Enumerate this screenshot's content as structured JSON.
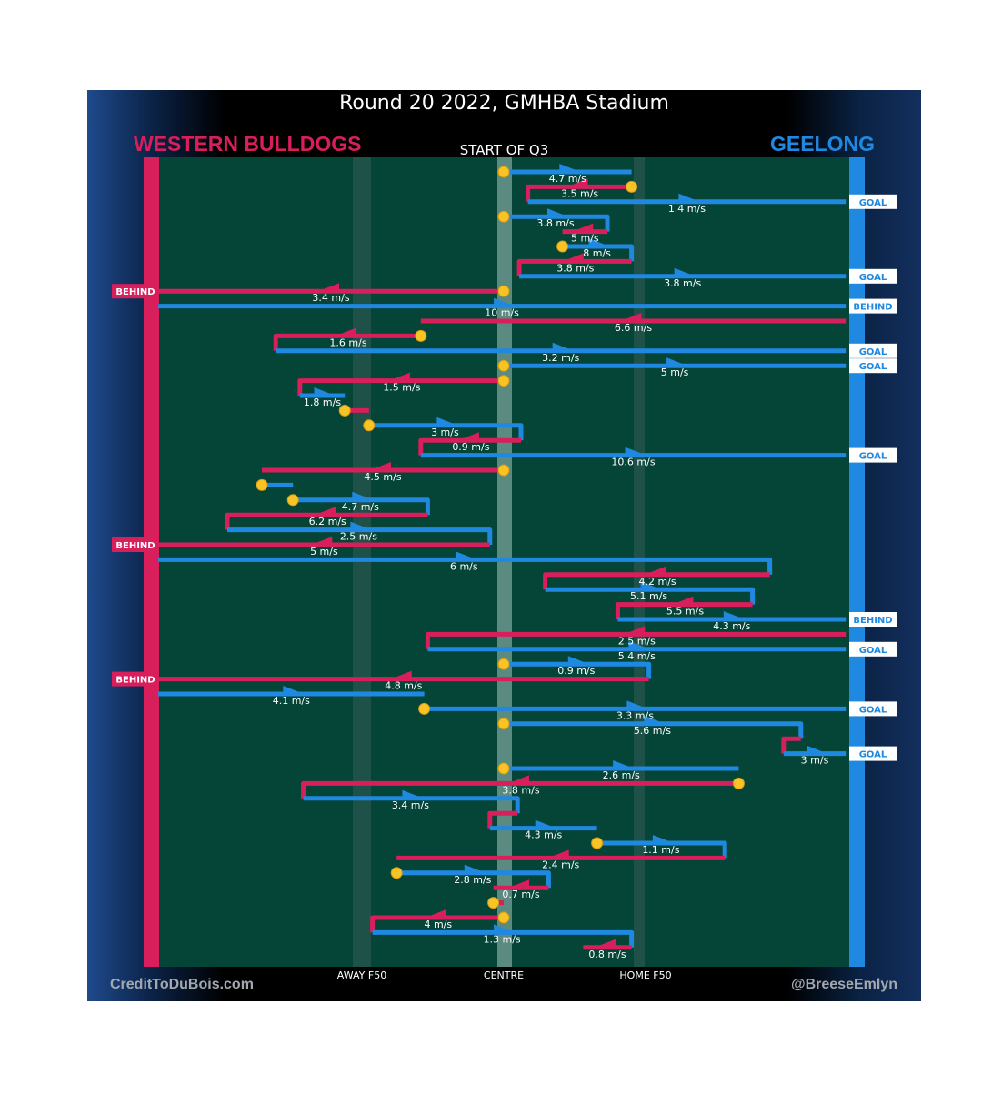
{
  "title": "Round 20 2022, GMHBA Stadium",
  "teams": {
    "left": "WESTERN BULLDOGS",
    "right": "GEELONG"
  },
  "colors": {
    "bulldogs": "#d81e5b",
    "geelong": "#1f88e0",
    "field": "#054538",
    "marker": "#f7c325"
  },
  "quarter_label": "START OF Q3",
  "axis_labels": {
    "away": "AWAY F50",
    "centre": "CENTRE",
    "home": "HOME F50"
  },
  "credits": {
    "left": "CreditToDuBois.com",
    "right": "@BreeseEmlyn"
  },
  "chart_data": {
    "type": "line",
    "x_axis": "field position",
    "x_ticks": [
      "AWAY F50",
      "CENTRE",
      "HOME F50"
    ],
    "segments": [
      {
        "team": "geelong",
        "x1": 0,
        "x2": 0.37,
        "speed": "4.7 m/s",
        "start": true
      },
      {
        "team": "bulldogs",
        "x1": 0.37,
        "x2": 0.07,
        "speed": "3.5 m/s",
        "start": true
      },
      {
        "team": "geelong",
        "x1": 0.07,
        "x2": 0.99,
        "speed": "1.4 m/s",
        "outcome": "GOAL"
      },
      {
        "team": "geelong",
        "x1": 0,
        "x2": 0.3,
        "speed": "3.8 m/s",
        "start": true
      },
      {
        "team": "bulldogs",
        "x1": 0.3,
        "x2": 0.17,
        "speed": "5 m/s"
      },
      {
        "team": "geelong",
        "x1": 0.17,
        "x2": 0.37,
        "speed": "8 m/s",
        "start": true
      },
      {
        "team": "bulldogs",
        "x1": 0.37,
        "x2": 0.045,
        "speed": "3.8 m/s"
      },
      {
        "team": "geelong",
        "x1": 0.045,
        "x2": 0.99,
        "speed": "3.8 m/s",
        "outcome": "GOAL"
      },
      {
        "team": "bulldogs",
        "x1": 0,
        "x2": -1,
        "speed": "3.4 m/s",
        "start": true,
        "outcome": "BEHIND"
      },
      {
        "team": "geelong",
        "x1": -1,
        "x2": 0.99,
        "speed": "10 m/s",
        "outcome": "BEHIND"
      },
      {
        "team": "bulldogs",
        "x1": 0.99,
        "x2": -0.24,
        "speed": "6.6 m/s"
      },
      {
        "team": "bulldogs",
        "x1": -0.24,
        "x2": -0.66,
        "speed": "1.6 m/s",
        "start": true
      },
      {
        "team": "geelong",
        "x1": -0.66,
        "x2": 0.99,
        "speed": "3.2 m/s",
        "outcome": "GOAL"
      },
      {
        "team": "geelong",
        "x1": 0,
        "x2": 0.99,
        "speed": "5 m/s",
        "start": true,
        "outcome": "GOAL"
      },
      {
        "team": "bulldogs",
        "x1": 0,
        "x2": -0.59,
        "speed": "1.5 m/s",
        "start": true
      },
      {
        "team": "geelong",
        "x1": -0.59,
        "x2": -0.46,
        "speed": "1.8 m/s"
      },
      {
        "team": "bulldogs",
        "x1": -0.46,
        "x2": -0.39,
        "speed": "",
        "start": true
      },
      {
        "team": "geelong",
        "x1": -0.39,
        "x2": 0.05,
        "speed": "3 m/s",
        "start": true
      },
      {
        "team": "bulldogs",
        "x1": 0.05,
        "x2": -0.24,
        "speed": "0.9 m/s"
      },
      {
        "team": "geelong",
        "x1": -0.24,
        "x2": 0.99,
        "speed": "10.6 m/s",
        "outcome": "GOAL"
      },
      {
        "team": "bulldogs",
        "x1": 0,
        "x2": -0.7,
        "speed": "4.5 m/s",
        "start": true
      },
      {
        "team": "geelong",
        "x1": -0.7,
        "x2": -0.61,
        "speed": "",
        "start": true
      },
      {
        "team": "geelong",
        "x1": -0.61,
        "x2": -0.22,
        "speed": "4.7 m/s",
        "start": true
      },
      {
        "team": "bulldogs",
        "x1": -0.22,
        "x2": -0.8,
        "speed": "6.2 m/s"
      },
      {
        "team": "geelong",
        "x1": -0.8,
        "x2": -0.04,
        "speed": "2.5 m/s"
      },
      {
        "team": "bulldogs",
        "x1": -0.04,
        "x2": -1,
        "speed": "5 m/s",
        "outcome": "BEHIND"
      },
      {
        "team": "geelong",
        "x1": -1,
        "x2": 0.77,
        "speed": "6 m/s"
      },
      {
        "team": "bulldogs",
        "x1": 0.77,
        "x2": 0.12,
        "speed": "4.2 m/s"
      },
      {
        "team": "geelong",
        "x1": 0.12,
        "x2": 0.72,
        "speed": "5.1 m/s"
      },
      {
        "team": "bulldogs",
        "x1": 0.72,
        "x2": 0.33,
        "speed": "5.5 m/s"
      },
      {
        "team": "geelong",
        "x1": 0.33,
        "x2": 0.99,
        "speed": "4.3 m/s",
        "outcome": "BEHIND"
      },
      {
        "team": "bulldogs",
        "x1": 0.99,
        "x2": -0.22,
        "speed": "2.5 m/s"
      },
      {
        "team": "geelong",
        "x1": -0.22,
        "x2": 0.99,
        "speed": "5.4 m/s",
        "outcome": "GOAL"
      },
      {
        "team": "geelong",
        "x1": 0,
        "x2": 0.42,
        "speed": "0.9 m/s",
        "start": true
      },
      {
        "team": "bulldogs",
        "x1": 0.42,
        "x2": -1,
        "speed": "4.8 m/s",
        "outcome": "BEHIND"
      },
      {
        "team": "geelong",
        "x1": -1,
        "x2": -0.23,
        "speed": "4.1 m/s"
      },
      {
        "team": "geelong",
        "x1": -0.23,
        "x2": 0.99,
        "speed": "3.3 m/s",
        "start": true,
        "outcome": "GOAL"
      },
      {
        "team": "geelong",
        "x1": 0,
        "x2": 0.86,
        "speed": "5.6 m/s",
        "start": true
      },
      {
        "team": "bulldogs",
        "x1": 0.86,
        "x2": 0.81,
        "speed": ""
      },
      {
        "team": "geelong",
        "x1": 0.81,
        "x2": 0.99,
        "speed": "3 m/s",
        "outcome": "GOAL"
      },
      {
        "team": "geelong",
        "x1": 0,
        "x2": 0.68,
        "speed": "2.6 m/s",
        "start": true
      },
      {
        "team": "bulldogs",
        "x1": 0.68,
        "x2": -0.58,
        "speed": "3.8 m/s",
        "start": true
      },
      {
        "team": "geelong",
        "x1": -0.58,
        "x2": 0.04,
        "speed": "3.4 m/s"
      },
      {
        "team": "bulldogs",
        "x1": 0.04,
        "x2": -0.04,
        "speed": ""
      },
      {
        "team": "geelong",
        "x1": -0.04,
        "x2": 0.27,
        "speed": "4.3 m/s"
      },
      {
        "team": "geelong",
        "x1": 0.27,
        "x2": 0.64,
        "speed": "1.1 m/s",
        "start": true
      },
      {
        "team": "bulldogs",
        "x1": 0.64,
        "x2": -0.31,
        "speed": "2.4 m/s"
      },
      {
        "team": "geelong",
        "x1": -0.31,
        "x2": 0.13,
        "speed": "2.8 m/s",
        "start": true
      },
      {
        "team": "bulldogs",
        "x1": 0.13,
        "x2": -0.03,
        "speed": "0.7 m/s"
      },
      {
        "team": "bulldogs",
        "x1": -0.03,
        "x2": 0,
        "speed": "",
        "start": true
      },
      {
        "team": "bulldogs",
        "x1": 0,
        "x2": -0.38,
        "speed": "4 m/s",
        "start": true
      },
      {
        "team": "geelong",
        "x1": -0.38,
        "x2": 0.37,
        "speed": "1.3 m/s"
      },
      {
        "team": "bulldogs",
        "x1": 0.37,
        "x2": 0.23,
        "speed": "0.8 m/s"
      }
    ]
  }
}
